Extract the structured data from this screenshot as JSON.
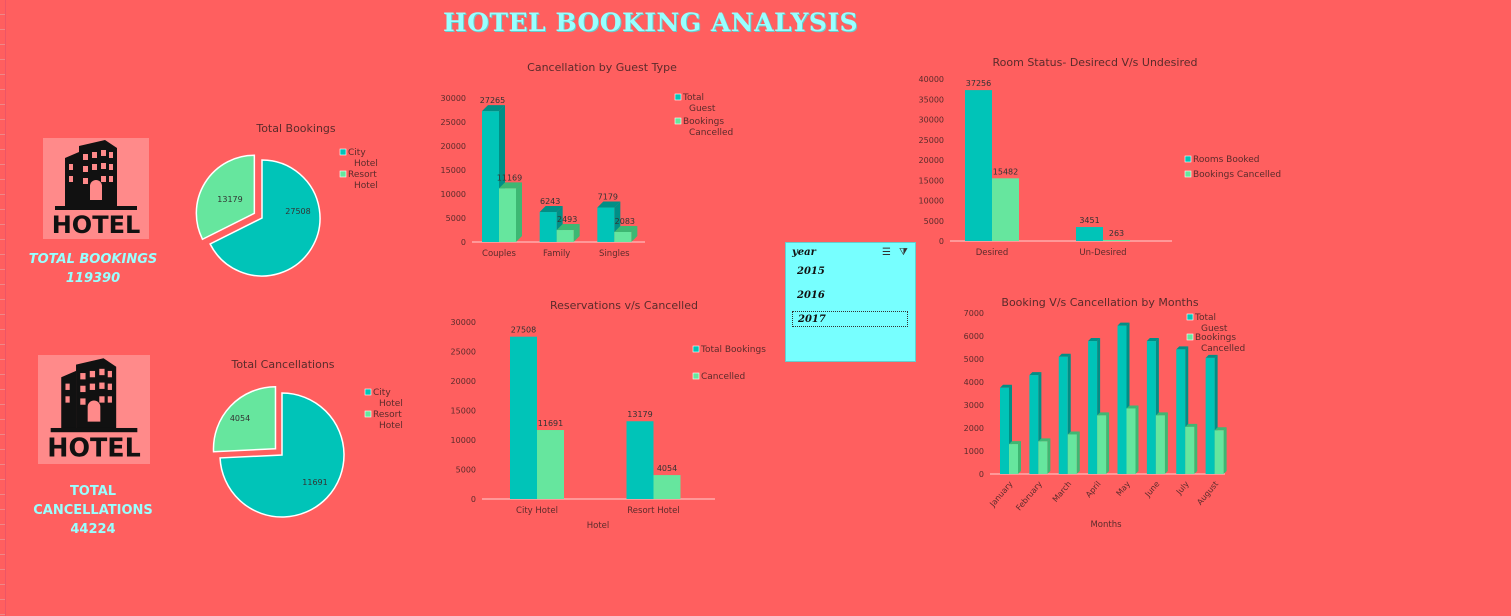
{
  "title": "HOTEL BOOKING ANALYSIS",
  "kpis": {
    "total_bookings_label": "TOTAL BOOKINGS",
    "total_bookings_value": "119390",
    "total_cancellations_label": "TOTAL CANCELLATIONS",
    "total_cancellations_value": "44224"
  },
  "logo_text": "HOTEL",
  "slicer": {
    "header": "year",
    "items": [
      "2015",
      "2016",
      "2017"
    ],
    "selected": "2017"
  },
  "colors": {
    "background": "#ff5f5f",
    "teal": "#00c4b8",
    "green": "#66e69e",
    "slicer_bg": "#77ffff",
    "title": "#99ffff"
  },
  "chart_data": [
    {
      "id": "total_bookings",
      "type": "pie",
      "title": "Total Bookings",
      "labels": [
        "City Hotel",
        "Resort Hotel"
      ],
      "values": [
        27508,
        13179
      ],
      "legend": "right"
    },
    {
      "id": "total_cancellations",
      "type": "pie",
      "title": "Total Cancellations",
      "labels": [
        "City Hotel",
        "Resort Hotel"
      ],
      "values": [
        11691,
        4054
      ],
      "legend": "right"
    },
    {
      "id": "guest_type",
      "type": "bar",
      "title": "Cancellation by Guest Type",
      "categories": [
        "Couples",
        "Family",
        "Singles"
      ],
      "series": [
        {
          "name": "Total Guest",
          "values": [
            27265,
            6243,
            7179
          ]
        },
        {
          "name": "Bookings Cancelled",
          "values": [
            11169,
            2493,
            2083
          ]
        }
      ],
      "ylim": [
        0,
        30000
      ],
      "yticks": [
        0,
        5000,
        10000,
        15000,
        20000,
        25000,
        30000
      ],
      "legend": "right"
    },
    {
      "id": "reservations",
      "type": "bar",
      "title": "Reservations v/s  Cancelled",
      "categories": [
        "City Hotel",
        "Resort Hotel"
      ],
      "xlabel": "Hotel",
      "series": [
        {
          "name": "Total Bookings",
          "values": [
            27508,
            13179
          ]
        },
        {
          "name": "Cancelled",
          "values": [
            11691,
            4054
          ]
        }
      ],
      "ylim": [
        0,
        30000
      ],
      "yticks": [
        0,
        5000,
        10000,
        15000,
        20000,
        25000,
        30000
      ],
      "legend": "right"
    },
    {
      "id": "room_status",
      "type": "bar",
      "title": "Room Status- Desirecd V/s Undesired",
      "categories": [
        "Desired",
        "Un-Desired"
      ],
      "series": [
        {
          "name": "Rooms Booked",
          "values": [
            37256,
            3451
          ]
        },
        {
          "name": "Bookings Cancelled",
          "values": [
            15482,
            263
          ]
        }
      ],
      "ylim": [
        0,
        40000
      ],
      "yticks": [
        0,
        5000,
        10000,
        15000,
        20000,
        25000,
        30000,
        35000,
        40000
      ],
      "legend": "right"
    },
    {
      "id": "months",
      "type": "bar",
      "title": "Booking V/s Cancellation by Months",
      "xlabel": "Months",
      "categories": [
        "January",
        "February",
        "March",
        "April",
        "May",
        "June",
        "July",
        "August"
      ],
      "series": [
        {
          "name": "Total Guest",
          "values": [
            3750,
            4300,
            5100,
            5780,
            6450,
            5780,
            5420,
            5050
          ]
        },
        {
          "name": "Bookings Cancelled",
          "values": [
            1300,
            1420,
            1720,
            2550,
            2850,
            2550,
            2050,
            1900
          ]
        }
      ],
      "ylim": [
        0,
        7000
      ],
      "yticks": [
        0,
        1000,
        2000,
        3000,
        4000,
        5000,
        6000,
        7000
      ],
      "legend": "top-right"
    }
  ]
}
